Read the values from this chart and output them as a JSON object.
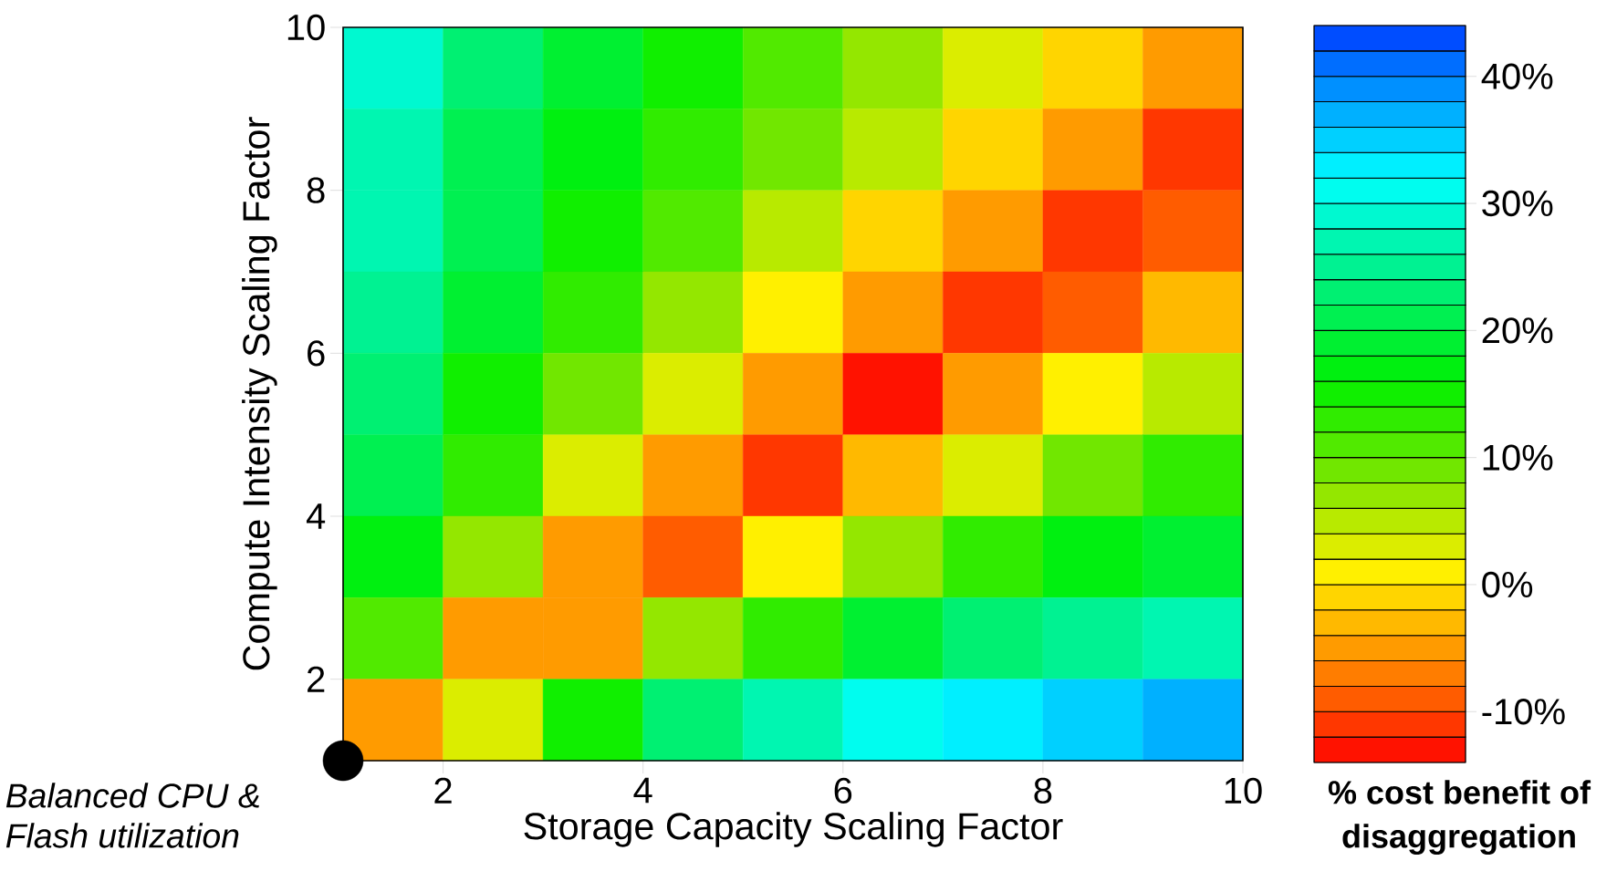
{
  "chart_data": {
    "type": "heatmap",
    "xlabel": "Storage Capacity Scaling Factor",
    "ylabel": "Compute Intensity Scaling Factor",
    "clabel": "% cost benefit of disaggregation",
    "annotations": [
      {
        "text": "Balanced CPU & Flash utilization",
        "x": 1,
        "y": 1
      }
    ],
    "series": [
      {
        "type": "scatter",
        "x": [
          1
        ],
        "values": [
          1
        ],
        "color": "#000000"
      }
    ],
    "x": [
      1.5,
      2.5,
      3.5,
      4.5,
      5.5,
      6.5,
      7.5,
      8.5,
      9.5
    ],
    "y": [
      9.5,
      8.5,
      7.5,
      6.5,
      5.5,
      4.5,
      3.5,
      2.5,
      1.5
    ],
    "xlim": [
      1,
      10
    ],
    "ylim": [
      1,
      10
    ],
    "xticks": [
      2,
      4,
      6,
      8,
      10
    ],
    "yticks": [
      2,
      4,
      6,
      8,
      10
    ],
    "cells": [
      [
        28,
        22,
        18,
        15,
        11,
        7,
        3,
        -2,
        -6
      ],
      [
        27,
        21,
        17,
        13,
        9,
        4,
        -1,
        -6,
        -11
      ],
      [
        26,
        20,
        15,
        10,
        5,
        -1,
        -6,
        -12,
        -10
      ],
      [
        24,
        18,
        12,
        7,
        0,
        -6,
        -12,
        -9,
        -3
      ],
      [
        22,
        15,
        9,
        2,
        -6,
        -13,
        -6,
        0,
        5
      ],
      [
        20,
        12,
        3,
        -6,
        -12,
        -3,
        3,
        8,
        12
      ],
      [
        16,
        6,
        -6,
        -9,
        0,
        7,
        12,
        16,
        19
      ],
      [
        10,
        -6,
        -5,
        6,
        13,
        18,
        22,
        25,
        27
      ],
      [
        -6,
        3,
        15,
        22,
        26,
        30,
        33,
        35,
        37
      ]
    ],
    "clim": [
      -14,
      44
    ],
    "cticks": [
      {
        "value": -10,
        "label": "-10%"
      },
      {
        "value": 0,
        "label": "0%"
      },
      {
        "value": 10,
        "label": "10%"
      },
      {
        "value": 20,
        "label": "20%"
      },
      {
        "value": 30,
        "label": "30%"
      },
      {
        "value": 40,
        "label": "40%"
      }
    ]
  }
}
